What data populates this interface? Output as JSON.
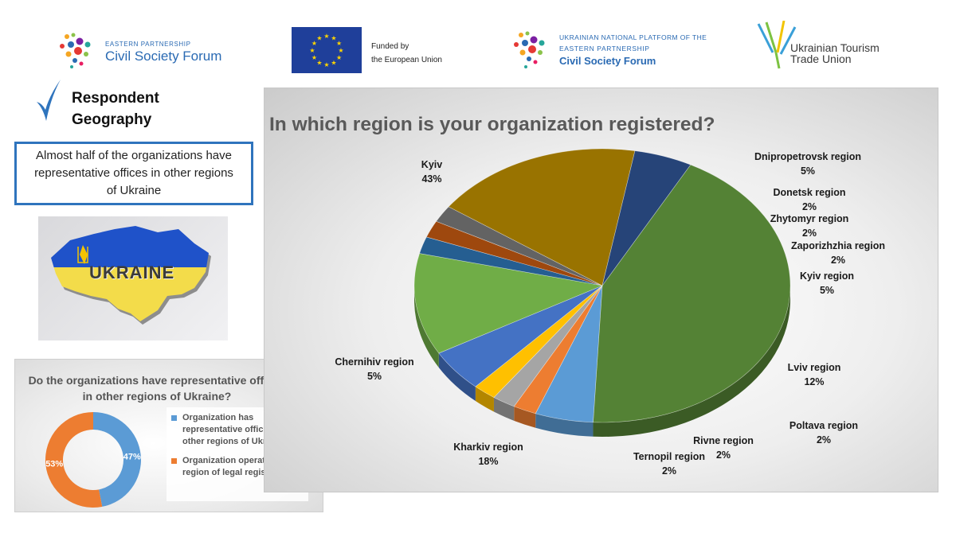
{
  "header": {
    "eap_small": "EASTERN PARTNERSHIP",
    "eap_big": "Civil Society Forum",
    "eu_line1": "Funded by",
    "eu_line2": "the European Union",
    "unp_line1": "UKRAINIAN NATIONAL PLATFORM OF THE",
    "unp_line2": "EASTERN PARTNERSHIP",
    "unp_line3": "Civil Society Forum",
    "uttu_line1": "Ukrainian Tourism",
    "uttu_line2": "Trade Union"
  },
  "left": {
    "section_title_1": "Respondent",
    "section_title_2": "Geography",
    "summary": "Almost half of the organizations have representative offices in other regions of Ukraine",
    "map_text": "UKRAINE"
  },
  "colors": {
    "accent_blue": "#2f74bd",
    "donut_blue": "#5b9bd5",
    "donut_orange": "#ed7d31",
    "check_blue": "#2f74bd"
  },
  "chart_data": [
    {
      "type": "pie",
      "variant": "3d",
      "title": "In which region is your organization registered?",
      "slices": [
        {
          "label": "Kyiv",
          "value": 43,
          "display": "43%",
          "color": "#548235"
        },
        {
          "label": "Dnipropetrovsk region",
          "value": 5,
          "display": "5%",
          "color": "#5b9bd5"
        },
        {
          "label": "Donetsk region",
          "value": 2,
          "display": "2%",
          "color": "#ed7d31"
        },
        {
          "label": "Zhytomyr region",
          "value": 2,
          "display": "2%",
          "color": "#a5a5a5"
        },
        {
          "label": "Zaporizhzhia region",
          "value": 2,
          "display": "2%",
          "color": "#ffc000"
        },
        {
          "label": "Kyiv region",
          "value": 5,
          "display": "5%",
          "color": "#4472c4"
        },
        {
          "label": "Lviv region",
          "value": 12,
          "display": "12%",
          "color": "#70ad47"
        },
        {
          "label": "Poltava region",
          "value": 2,
          "display": "2%",
          "color": "#255e91"
        },
        {
          "label": "Rivne region",
          "value": 2,
          "display": "2%",
          "color": "#9e480e"
        },
        {
          "label": "Ternopil region",
          "value": 2,
          "display": "2%",
          "color": "#636363"
        },
        {
          "label": "Kharkiv region",
          "value": 18,
          "display": "18%",
          "color": "#997300"
        },
        {
          "label": "Chernihiv region",
          "value": 5,
          "display": "5%",
          "color": "#264478"
        }
      ]
    },
    {
      "type": "pie",
      "variant": "doughnut",
      "title": "Do the organizations have representative offices in other regions of Ukraine?",
      "slices": [
        {
          "label": "Organization has representative offices in other regions of Ukraine",
          "value": 47,
          "display": "47%",
          "color": "#5b9bd5"
        },
        {
          "label": "Organization operates in the region of legal registration",
          "value": 53,
          "display": "53%",
          "color": "#ed7d31"
        }
      ]
    }
  ]
}
